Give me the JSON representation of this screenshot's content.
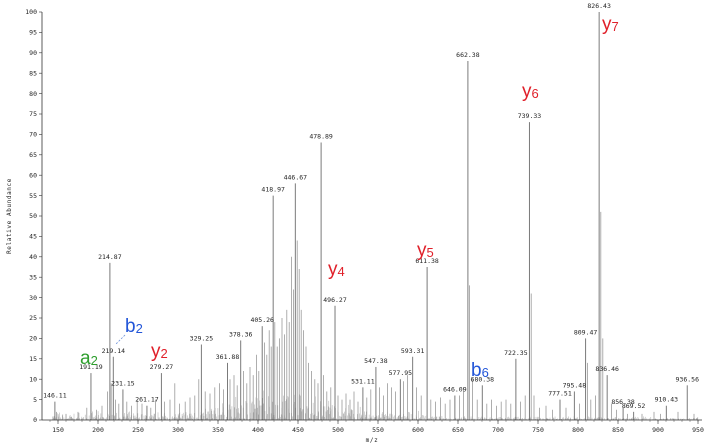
{
  "chart_data": {
    "type": "bar",
    "title": "",
    "xlabel": "m/z",
    "ylabel": "Relative Abundance",
    "xlim": [
      130,
      955
    ],
    "ylim": [
      0,
      100
    ],
    "x_ticks": [
      150,
      200,
      250,
      300,
      350,
      400,
      450,
      500,
      550,
      600,
      650,
      700,
      750,
      800,
      850,
      900,
      950
    ],
    "y_ticks": [
      0,
      5,
      10,
      15,
      20,
      25,
      30,
      35,
      40,
      45,
      50,
      55,
      60,
      65,
      70,
      75,
      80,
      85,
      90,
      95,
      100
    ],
    "grid": false,
    "labeled_peaks": [
      {
        "mz": 146.11,
        "intensity": 4.5
      },
      {
        "mz": 191.19,
        "intensity": 11.5
      },
      {
        "mz": 214.87,
        "intensity": 38.5
      },
      {
        "mz": 219.14,
        "intensity": 15.5
      },
      {
        "mz": 231.15,
        "intensity": 7.5
      },
      {
        "mz": 261.17,
        "intensity": 3.5
      },
      {
        "mz": 279.27,
        "intensity": 11.5
      },
      {
        "mz": 329.25,
        "intensity": 18.5
      },
      {
        "mz": 361.88,
        "intensity": 14.0
      },
      {
        "mz": 378.36,
        "intensity": 19.5
      },
      {
        "mz": 405.26,
        "intensity": 23.0
      },
      {
        "mz": 418.97,
        "intensity": 55.0
      },
      {
        "mz": 446.67,
        "intensity": 58.0
      },
      {
        "mz": 478.89,
        "intensity": 68.0
      },
      {
        "mz": 496.27,
        "intensity": 28.0
      },
      {
        "mz": 531.11,
        "intensity": 8.0
      },
      {
        "mz": 547.38,
        "intensity": 13.0
      },
      {
        "mz": 577.95,
        "intensity": 10.0
      },
      {
        "mz": 593.31,
        "intensity": 15.5
      },
      {
        "mz": 611.38,
        "intensity": 37.5
      },
      {
        "mz": 646.09,
        "intensity": 6.0
      },
      {
        "mz": 662.38,
        "intensity": 88.0
      },
      {
        "mz": 680.38,
        "intensity": 8.5
      },
      {
        "mz": 722.35,
        "intensity": 15.0
      },
      {
        "mz": 739.33,
        "intensity": 73.0
      },
      {
        "mz": 777.51,
        "intensity": 5.0
      },
      {
        "mz": 795.48,
        "intensity": 7.0
      },
      {
        "mz": 809.47,
        "intensity": 20.0
      },
      {
        "mz": 826.43,
        "intensity": 100.0
      },
      {
        "mz": 836.46,
        "intensity": 11.0
      },
      {
        "mz": 856.38,
        "intensity": 3.0
      },
      {
        "mz": 869.52,
        "intensity": 2.0
      },
      {
        "mz": 910.43,
        "intensity": 3.5
      },
      {
        "mz": 936.56,
        "intensity": 8.5
      }
    ],
    "unlabeled_peaks": [
      {
        "mz": 148.0,
        "intensity": 2.0
      },
      {
        "mz": 160.0,
        "intensity": 1.5
      },
      {
        "mz": 175.0,
        "intensity": 2.0
      },
      {
        "mz": 186.0,
        "intensity": 3.0
      },
      {
        "mz": 198.0,
        "intensity": 2.5
      },
      {
        "mz": 205.0,
        "intensity": 3.5
      },
      {
        "mz": 212.0,
        "intensity": 7.0
      },
      {
        "mz": 216.5,
        "intensity": 9.0
      },
      {
        "mz": 222.0,
        "intensity": 5.0
      },
      {
        "mz": 226.0,
        "intensity": 4.0
      },
      {
        "mz": 236.0,
        "intensity": 4.5
      },
      {
        "mz": 242.0,
        "intensity": 3.5
      },
      {
        "mz": 249.0,
        "intensity": 5.0
      },
      {
        "mz": 255.0,
        "intensity": 4.0
      },
      {
        "mz": 266.0,
        "intensity": 3.0
      },
      {
        "mz": 272.0,
        "intensity": 5.0
      },
      {
        "mz": 283.0,
        "intensity": 4.5
      },
      {
        "mz": 290.0,
        "intensity": 5.0
      },
      {
        "mz": 296.0,
        "intensity": 9.0
      },
      {
        "mz": 302.0,
        "intensity": 4.0
      },
      {
        "mz": 309.0,
        "intensity": 4.5
      },
      {
        "mz": 315.0,
        "intensity": 5.5
      },
      {
        "mz": 321.0,
        "intensity": 6.0
      },
      {
        "mz": 326.0,
        "intensity": 10.0
      },
      {
        "mz": 334.0,
        "intensity": 7.0
      },
      {
        "mz": 340.0,
        "intensity": 6.5
      },
      {
        "mz": 346.0,
        "intensity": 8.0
      },
      {
        "mz": 352.0,
        "intensity": 9.0
      },
      {
        "mz": 357.0,
        "intensity": 7.5
      },
      {
        "mz": 365.0,
        "intensity": 10.0
      },
      {
        "mz": 370.0,
        "intensity": 11.0
      },
      {
        "mz": 374.0,
        "intensity": 8.5
      },
      {
        "mz": 382.0,
        "intensity": 12.0
      },
      {
        "mz": 386.0,
        "intensity": 9.0
      },
      {
        "mz": 390.0,
        "intensity": 13.0
      },
      {
        "mz": 394.0,
        "intensity": 11.0
      },
      {
        "mz": 398.0,
        "intensity": 16.0
      },
      {
        "mz": 401.0,
        "intensity": 12.0
      },
      {
        "mz": 408.0,
        "intensity": 19.0
      },
      {
        "mz": 411.0,
        "intensity": 16.0
      },
      {
        "mz": 414.0,
        "intensity": 22.0
      },
      {
        "mz": 416.5,
        "intensity": 18.0
      },
      {
        "mz": 421.0,
        "intensity": 24.0
      },
      {
        "mz": 424.0,
        "intensity": 18.0
      },
      {
        "mz": 427.0,
        "intensity": 20.0
      },
      {
        "mz": 430.0,
        "intensity": 25.0
      },
      {
        "mz": 433.0,
        "intensity": 21.0
      },
      {
        "mz": 436.0,
        "intensity": 27.0
      },
      {
        "mz": 439.0,
        "intensity": 24.0
      },
      {
        "mz": 442.0,
        "intensity": 40.0
      },
      {
        "mz": 444.5,
        "intensity": 32.0
      },
      {
        "mz": 449.0,
        "intensity": 44.0
      },
      {
        "mz": 451.5,
        "intensity": 37.0
      },
      {
        "mz": 454.0,
        "intensity": 27.0
      },
      {
        "mz": 457.0,
        "intensity": 22.0
      },
      {
        "mz": 460.0,
        "intensity": 18.0
      },
      {
        "mz": 463.0,
        "intensity": 14.0
      },
      {
        "mz": 467.0,
        "intensity": 12.0
      },
      {
        "mz": 471.0,
        "intensity": 10.0
      },
      {
        "mz": 475.0,
        "intensity": 9.0
      },
      {
        "mz": 482.0,
        "intensity": 11.0
      },
      {
        "mz": 486.0,
        "intensity": 7.0
      },
      {
        "mz": 491.0,
        "intensity": 8.0
      },
      {
        "mz": 500.0,
        "intensity": 6.0
      },
      {
        "mz": 505.0,
        "intensity": 5.0
      },
      {
        "mz": 510.0,
        "intensity": 6.5
      },
      {
        "mz": 515.0,
        "intensity": 5.0
      },
      {
        "mz": 520.0,
        "intensity": 7.0
      },
      {
        "mz": 525.0,
        "intensity": 4.5
      },
      {
        "mz": 536.0,
        "intensity": 5.5
      },
      {
        "mz": 541.0,
        "intensity": 7.5
      },
      {
        "mz": 552.0,
        "intensity": 8.0
      },
      {
        "mz": 557.0,
        "intensity": 6.0
      },
      {
        "mz": 562.0,
        "intensity": 9.0
      },
      {
        "mz": 567.0,
        "intensity": 8.0
      },
      {
        "mz": 572.0,
        "intensity": 7.0
      },
      {
        "mz": 582.0,
        "intensity": 9.5
      },
      {
        "mz": 587.0,
        "intensity": 11.0
      },
      {
        "mz": 598.0,
        "intensity": 8.0
      },
      {
        "mz": 604.0,
        "intensity": 6.0
      },
      {
        "mz": 616.0,
        "intensity": 5.0
      },
      {
        "mz": 622.0,
        "intensity": 4.5
      },
      {
        "mz": 628.0,
        "intensity": 5.5
      },
      {
        "mz": 634.0,
        "intensity": 4.0
      },
      {
        "mz": 640.0,
        "intensity": 5.0
      },
      {
        "mz": 652.0,
        "intensity": 6.0
      },
      {
        "mz": 657.0,
        "intensity": 8.0
      },
      {
        "mz": 664.5,
        "intensity": 33.0
      },
      {
        "mz": 668.0,
        "intensity": 10.0
      },
      {
        "mz": 674.0,
        "intensity": 5.0
      },
      {
        "mz": 686.0,
        "intensity": 4.0
      },
      {
        "mz": 692.0,
        "intensity": 5.0
      },
      {
        "mz": 698.0,
        "intensity": 3.5
      },
      {
        "mz": 704.0,
        "intensity": 4.5
      },
      {
        "mz": 710.0,
        "intensity": 5.0
      },
      {
        "mz": 716.0,
        "intensity": 4.0
      },
      {
        "mz": 728.0,
        "intensity": 4.5
      },
      {
        "mz": 734.0,
        "intensity": 6.0
      },
      {
        "mz": 741.5,
        "intensity": 31.0
      },
      {
        "mz": 745.0,
        "intensity": 6.0
      },
      {
        "mz": 752.0,
        "intensity": 3.0
      },
      {
        "mz": 760.0,
        "intensity": 3.5
      },
      {
        "mz": 768.0,
        "intensity": 2.5
      },
      {
        "mz": 785.0,
        "intensity": 3.0
      },
      {
        "mz": 802.0,
        "intensity": 4.0
      },
      {
        "mz": 812.0,
        "intensity": 14.0
      },
      {
        "mz": 816.0,
        "intensity": 5.0
      },
      {
        "mz": 822.0,
        "intensity": 6.0
      },
      {
        "mz": 828.5,
        "intensity": 51.0
      },
      {
        "mz": 831.0,
        "intensity": 20.0
      },
      {
        "mz": 842.0,
        "intensity": 4.0
      },
      {
        "mz": 848.0,
        "intensity": 2.5
      },
      {
        "mz": 862.0,
        "intensity": 1.5
      },
      {
        "mz": 880.0,
        "intensity": 1.5
      },
      {
        "mz": 895.0,
        "intensity": 2.0
      },
      {
        "mz": 903.0,
        "intensity": 1.5
      },
      {
        "mz": 925.0,
        "intensity": 2.0
      },
      {
        "mz": 945.0,
        "intensity": 1.5
      }
    ],
    "ion_annotations": [
      {
        "letter": "a",
        "sub": "2",
        "color": "#2e9e2e"
      },
      {
        "letter": "b",
        "sub": "2",
        "color": "#2255d8"
      },
      {
        "letter": "y",
        "sub": "2",
        "color": "#e0202a"
      },
      {
        "letter": "y",
        "sub": "4",
        "color": "#e0202a"
      },
      {
        "letter": "y",
        "sub": "5",
        "color": "#e0202a"
      },
      {
        "letter": "b",
        "sub": "6",
        "color": "#2255d8"
      },
      {
        "letter": "y",
        "sub": "6",
        "color": "#e0202a"
      },
      {
        "letter": "y",
        "sub": "7",
        "color": "#e0202a"
      }
    ]
  }
}
